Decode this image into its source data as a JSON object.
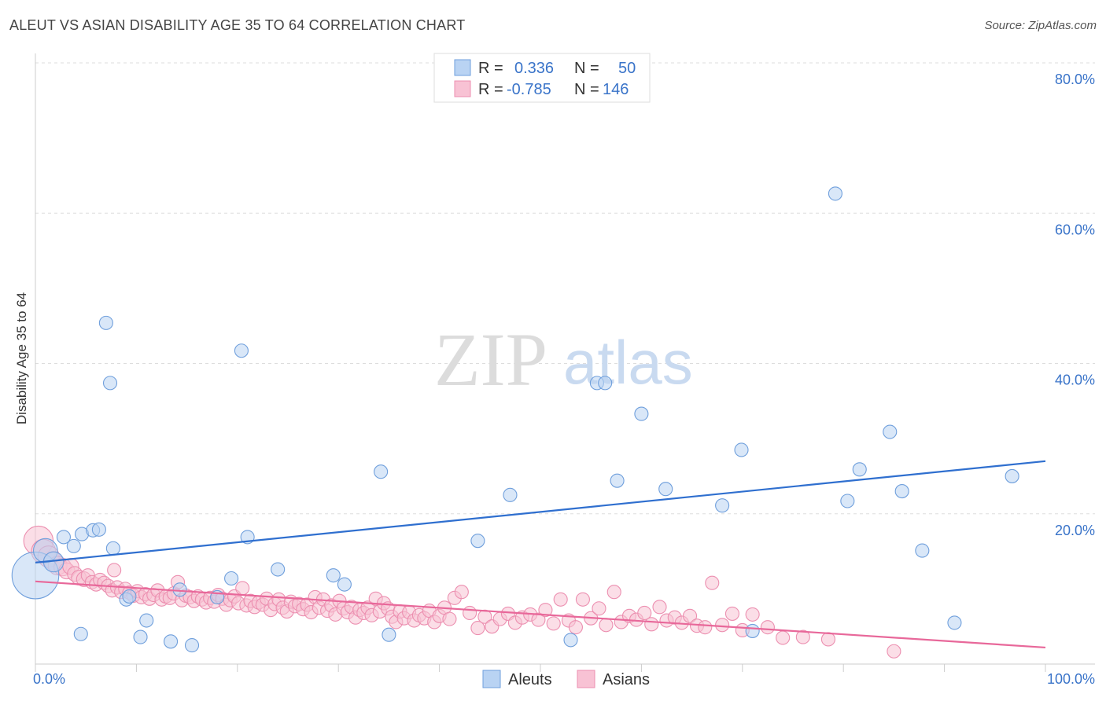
{
  "title": "ALEUT VS ASIAN DISABILITY AGE 35 TO 64 CORRELATION CHART",
  "source": "Source: ZipAtlas.com",
  "watermark": {
    "zip": "ZIP",
    "atlas": "atlas"
  },
  "colors": {
    "aleut_fill": "#b9d3f3",
    "aleut_stroke": "#6f9fdc",
    "aleut_line": "#2f6fcf",
    "asian_fill": "#f8c2d4",
    "asian_stroke": "#ec8fb0",
    "asian_line": "#e8689a",
    "grid": "#dddddd",
    "axis_text": "#3a74c9"
  },
  "legend_top": [
    {
      "r_label": "R =",
      "r_value": "0.336",
      "n_label": "N =",
      "n_value": "50"
    },
    {
      "r_label": "R =",
      "r_value": "-0.785",
      "n_label": "N =",
      "n_value": "146"
    }
  ],
  "chart_data": {
    "type": "scatter",
    "title": "ALEUT VS ASIAN DISABILITY AGE 35 TO 64 CORRELATION CHART",
    "xlabel": "",
    "ylabel": "Disability Age 35 to 64",
    "xlim": [
      0,
      100
    ],
    "ylim": [
      0,
      80
    ],
    "x_tick_labels": [
      "0.0%",
      "100.0%"
    ],
    "y_ticks": [
      20,
      40,
      60,
      80
    ],
    "y_tick_labels": [
      "20.0%",
      "40.0%",
      "60.0%",
      "80.0%"
    ],
    "grid": true,
    "legend_position": "bottom",
    "series": [
      {
        "name": "Aleuts",
        "r": 0.336,
        "n": 50,
        "trend": [
          [
            0,
            13.5
          ],
          [
            100,
            27.0
          ]
        ],
        "points": [
          [
            0.0,
            11.8,
            3.5
          ],
          [
            1.0,
            15.1,
            1.8
          ],
          [
            1.8,
            13.6,
            1.5
          ],
          [
            2.8,
            16.9,
            1
          ],
          [
            3.8,
            15.7,
            1
          ],
          [
            4.5,
            4.0,
            1
          ],
          [
            4.6,
            17.3,
            1
          ],
          [
            5.7,
            17.8,
            1
          ],
          [
            6.3,
            17.9,
            1
          ],
          [
            7.0,
            45.4,
            1
          ],
          [
            7.4,
            37.4,
            1
          ],
          [
            7.7,
            15.4,
            1
          ],
          [
            9.0,
            8.6,
            1
          ],
          [
            9.3,
            9.0,
            1
          ],
          [
            10.4,
            3.6,
            1
          ],
          [
            11.0,
            5.8,
            1
          ],
          [
            13.4,
            3.0,
            1
          ],
          [
            14.3,
            9.9,
            1
          ],
          [
            15.5,
            2.5,
            1
          ],
          [
            18.0,
            8.9,
            1
          ],
          [
            19.4,
            11.4,
            1
          ],
          [
            20.4,
            41.7,
            1
          ],
          [
            21.0,
            16.9,
            1
          ],
          [
            24.0,
            12.6,
            1
          ],
          [
            29.5,
            11.8,
            1
          ],
          [
            30.6,
            10.6,
            1
          ],
          [
            34.2,
            25.6,
            1
          ],
          [
            35.0,
            3.9,
            1
          ],
          [
            43.8,
            16.4,
            1
          ],
          [
            47.0,
            22.5,
            1
          ],
          [
            53.0,
            3.2,
            1
          ],
          [
            55.6,
            37.4,
            1
          ],
          [
            56.4,
            37.4,
            1
          ],
          [
            57.6,
            24.4,
            1
          ],
          [
            60.0,
            33.3,
            1
          ],
          [
            62.4,
            23.3,
            1
          ],
          [
            68.0,
            21.1,
            1
          ],
          [
            69.9,
            28.5,
            1
          ],
          [
            71.0,
            4.4,
            1
          ],
          [
            79.2,
            62.6,
            1
          ],
          [
            80.4,
            21.7,
            1
          ],
          [
            81.6,
            25.9,
            1
          ],
          [
            84.6,
            30.9,
            1
          ],
          [
            85.8,
            23.0,
            1
          ],
          [
            87.8,
            15.1,
            1
          ],
          [
            91.0,
            5.5,
            1
          ],
          [
            96.7,
            25.0,
            1
          ]
        ]
      },
      {
        "name": "Asians",
        "r": -0.785,
        "n": 146,
        "trend": [
          [
            0,
            11.0
          ],
          [
            100,
            2.2
          ]
        ],
        "points": [
          [
            0.3,
            16.4,
            2.2
          ],
          [
            0.8,
            15.0,
            1.8
          ],
          [
            1.3,
            14.3,
            1.6
          ],
          [
            1.8,
            13.7,
            1.4
          ],
          [
            2.2,
            13.1,
            1.4
          ],
          [
            2.7,
            12.9,
            1.3
          ],
          [
            3.1,
            12.4,
            1.2
          ],
          [
            3.5,
            13.0,
            1.2
          ],
          [
            3.9,
            12.0,
            1.1
          ],
          [
            4.3,
            11.5,
            1.1
          ],
          [
            4.8,
            11.3,
            1.1
          ],
          [
            5.2,
            11.8,
            1
          ],
          [
            5.6,
            10.9,
            1
          ],
          [
            6.0,
            10.6,
            1
          ],
          [
            6.4,
            11.2,
            1
          ],
          [
            6.8,
            10.8,
            1
          ],
          [
            7.2,
            10.4,
            1
          ],
          [
            7.6,
            9.8,
            1
          ],
          [
            7.8,
            12.5,
            1
          ],
          [
            8.1,
            10.2,
            1
          ],
          [
            8.5,
            9.6,
            1
          ],
          [
            8.9,
            10.0,
            1
          ],
          [
            9.3,
            9.5,
            1
          ],
          [
            9.7,
            9.1,
            1
          ],
          [
            10.1,
            9.7,
            1
          ],
          [
            10.5,
            8.9,
            1
          ],
          [
            10.9,
            9.3,
            1
          ],
          [
            11.3,
            8.7,
            1
          ],
          [
            11.7,
            9.2,
            1
          ],
          [
            12.1,
            9.8,
            1
          ],
          [
            12.5,
            8.6,
            1
          ],
          [
            12.9,
            9.0,
            1
          ],
          [
            13.3,
            8.8,
            1
          ],
          [
            13.7,
            9.4,
            1
          ],
          [
            14.1,
            10.9,
            1
          ],
          [
            14.5,
            8.5,
            1
          ],
          [
            14.9,
            9.1,
            1
          ],
          [
            15.3,
            8.9,
            1
          ],
          [
            15.7,
            8.4,
            1
          ],
          [
            16.1,
            9.0,
            1
          ],
          [
            16.5,
            8.6,
            1
          ],
          [
            16.9,
            8.2,
            1
          ],
          [
            17.3,
            8.8,
            1
          ],
          [
            17.7,
            8.3,
            1
          ],
          [
            18.1,
            9.2,
            1
          ],
          [
            18.5,
            8.7,
            1
          ],
          [
            18.9,
            7.9,
            1
          ],
          [
            19.3,
            8.5,
            1
          ],
          [
            19.7,
            9.0,
            1
          ],
          [
            20.1,
            8.1,
            1
          ],
          [
            20.5,
            10.1,
            1
          ],
          [
            20.9,
            7.8,
            1
          ],
          [
            21.3,
            8.4,
            1
          ],
          [
            21.7,
            7.6,
            1
          ],
          [
            22.1,
            8.2,
            1
          ],
          [
            22.5,
            7.9,
            1
          ],
          [
            22.9,
            8.7,
            1
          ],
          [
            23.3,
            7.2,
            1
          ],
          [
            23.7,
            8.0,
            1
          ],
          [
            24.1,
            8.6,
            1
          ],
          [
            24.5,
            7.5,
            1
          ],
          [
            24.9,
            7.0,
            1
          ],
          [
            25.3,
            8.3,
            1
          ],
          [
            25.7,
            7.7,
            1
          ],
          [
            26.1,
            8.0,
            1
          ],
          [
            26.5,
            7.3,
            1
          ],
          [
            26.9,
            7.9,
            1
          ],
          [
            27.3,
            6.9,
            1
          ],
          [
            27.7,
            8.9,
            1
          ],
          [
            28.1,
            7.5,
            1
          ],
          [
            28.5,
            8.6,
            1
          ],
          [
            28.9,
            7.1,
            1
          ],
          [
            29.3,
            7.8,
            1
          ],
          [
            29.7,
            6.6,
            1
          ],
          [
            30.1,
            8.4,
            1
          ],
          [
            30.5,
            7.4,
            1
          ],
          [
            30.9,
            6.9,
            1
          ],
          [
            31.3,
            7.6,
            1
          ],
          [
            31.7,
            6.2,
            1
          ],
          [
            32.1,
            7.2,
            1
          ],
          [
            32.5,
            6.8,
            1
          ],
          [
            32.9,
            7.5,
            1
          ],
          [
            33.3,
            6.5,
            1
          ],
          [
            33.7,
            8.7,
            1
          ],
          [
            34.1,
            7.0,
            1
          ],
          [
            34.5,
            8.1,
            1
          ],
          [
            34.9,
            7.4,
            1
          ],
          [
            35.3,
            6.3,
            1
          ],
          [
            35.7,
            5.6,
            1
          ],
          [
            36.1,
            7.0,
            1
          ],
          [
            36.5,
            6.1,
            1
          ],
          [
            37.0,
            6.9,
            1
          ],
          [
            37.5,
            5.8,
            1
          ],
          [
            38.0,
            6.5,
            1
          ],
          [
            38.5,
            6.1,
            1
          ],
          [
            39.0,
            7.1,
            1
          ],
          [
            39.5,
            5.6,
            1
          ],
          [
            40.0,
            6.4,
            1
          ],
          [
            40.5,
            7.5,
            1
          ],
          [
            41.0,
            6.0,
            1
          ],
          [
            41.5,
            8.8,
            1
          ],
          [
            42.2,
            9.6,
            1
          ],
          [
            43.0,
            6.8,
            1
          ],
          [
            43.8,
            4.8,
            1
          ],
          [
            44.5,
            6.3,
            1
          ],
          [
            45.2,
            5.0,
            1
          ],
          [
            46.0,
            6.0,
            1
          ],
          [
            46.8,
            6.7,
            1
          ],
          [
            47.5,
            5.5,
            1
          ],
          [
            48.2,
            6.2,
            1
          ],
          [
            49.0,
            6.6,
            1
          ],
          [
            49.8,
            5.9,
            1
          ],
          [
            50.5,
            7.2,
            1
          ],
          [
            51.3,
            5.4,
            1
          ],
          [
            52.0,
            8.6,
            1
          ],
          [
            52.8,
            5.8,
            1
          ],
          [
            53.5,
            4.9,
            1
          ],
          [
            54.2,
            8.6,
            1
          ],
          [
            55.0,
            6.1,
            1
          ],
          [
            55.8,
            7.4,
            1
          ],
          [
            56.5,
            5.2,
            1
          ],
          [
            57.3,
            9.6,
            1
          ],
          [
            58.0,
            5.6,
            1
          ],
          [
            58.8,
            6.4,
            1
          ],
          [
            59.5,
            5.9,
            1
          ],
          [
            60.3,
            6.8,
            1
          ],
          [
            61.0,
            5.3,
            1
          ],
          [
            61.8,
            7.6,
            1
          ],
          [
            62.5,
            5.8,
            1
          ],
          [
            63.3,
            6.2,
            1
          ],
          [
            64.0,
            5.5,
            1
          ],
          [
            64.8,
            6.4,
            1
          ],
          [
            65.5,
            5.1,
            1
          ],
          [
            66.3,
            4.9,
            1
          ],
          [
            67.0,
            10.8,
            1
          ],
          [
            68.0,
            5.2,
            1
          ],
          [
            69.0,
            6.7,
            1
          ],
          [
            70.0,
            4.5,
            1
          ],
          [
            71.0,
            6.6,
            1
          ],
          [
            72.5,
            4.9,
            1
          ],
          [
            74.0,
            3.5,
            1
          ],
          [
            76.0,
            3.6,
            1
          ],
          [
            78.5,
            3.3,
            1
          ],
          [
            85.0,
            1.7,
            1
          ]
        ]
      }
    ]
  }
}
